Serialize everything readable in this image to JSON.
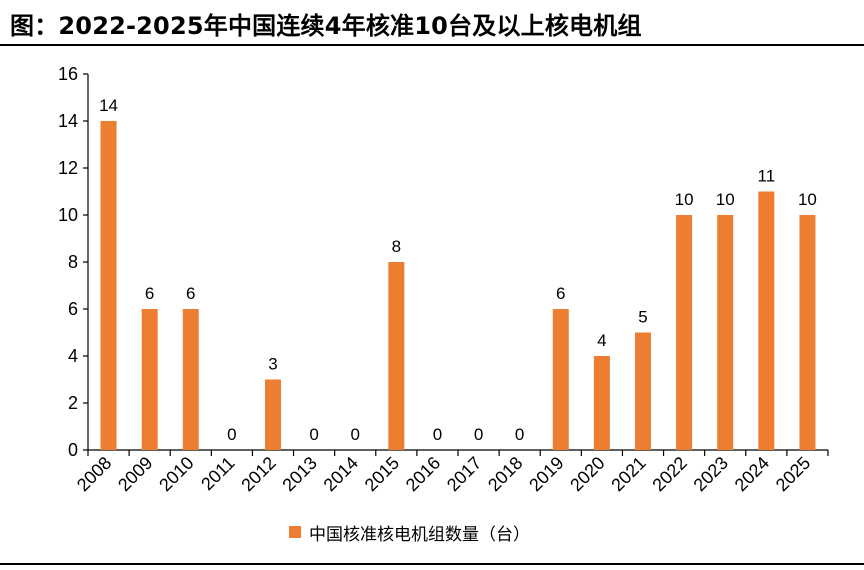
{
  "figure": {
    "title": "图：2022-2025年中国连续4年核准10台及以上核电机组"
  },
  "chart_data": {
    "type": "bar",
    "title": "图：2022-2025年中国连续4年核准10台及以上核电机组",
    "xlabel": "",
    "ylabel": "",
    "categories": [
      "2008",
      "2009",
      "2010",
      "2011",
      "2012",
      "2013",
      "2014",
      "2015",
      "2016",
      "2017",
      "2018",
      "2019",
      "2020",
      "2021",
      "2022",
      "2023",
      "2024",
      "2025"
    ],
    "series": [
      {
        "name": "中国核准核电机组数量（台）",
        "values": [
          14,
          6,
          6,
          0,
          3,
          0,
          0,
          8,
          0,
          0,
          0,
          6,
          4,
          5,
          10,
          10,
          11,
          10
        ],
        "color": "#ED7D31"
      }
    ],
    "ylim": [
      0,
      16
    ],
    "yticks": [
      0,
      2,
      4,
      6,
      8,
      10,
      12,
      14,
      16
    ],
    "grid": false,
    "legend_position": "bottom",
    "data_labels": true
  }
}
